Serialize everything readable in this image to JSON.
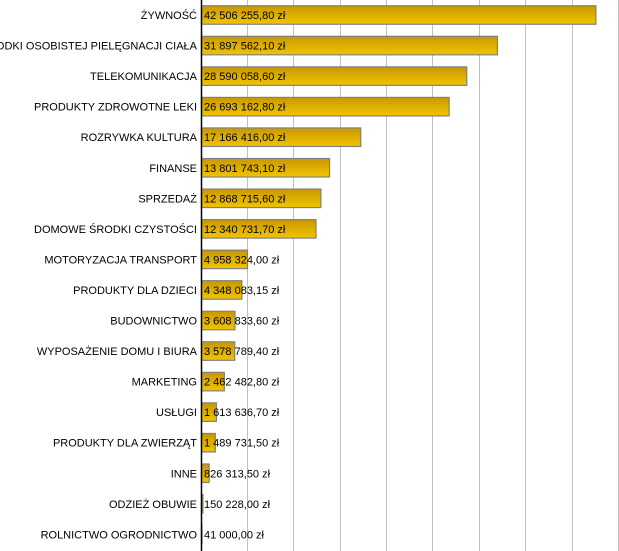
{
  "chart_data": {
    "type": "bar",
    "orientation": "horizontal",
    "title": "",
    "xlabel": "",
    "ylabel": "",
    "xlim": [
      0,
      45000000
    ],
    "grid_step": 5000000,
    "grid": true,
    "bar_color_top": "#c89800",
    "bar_color_bottom": "#f2c400",
    "bar_border": "#808080",
    "grid_color": "#c0c0c0",
    "categories": [
      "ŻYWNOŚĆ",
      "ŚRODKI OSOBISTEJ PIELĘGNACJI CIAŁA",
      "TELEKOMUNIKACJA",
      "PRODUKTY ZDROWOTNE LEKI",
      "ROZRYWKA KULTURA",
      "FINANSE",
      "SPRZEDAŻ",
      "DOMOWE ŚRODKI CZYSTOŚCI",
      "MOTORYZACJA TRANSPORT",
      "PRODUKTY DLA DZIECI",
      "BUDOWNICTWO",
      "WYPOSAŻENIE DOMU I BIURA",
      "MARKETING",
      "USŁUGI",
      "PRODUKTY DLA ZWIERZĄT",
      "INNE",
      "ODZIEŻ OBUWIE",
      "ROLNICTWO OGRODNICTWO"
    ],
    "values": [
      42506255.8,
      31897562.1,
      28590058.6,
      26693162.8,
      17166416.0,
      13801743.1,
      12868715.6,
      12340731.7,
      4958324.0,
      4348083.15,
      3608833.6,
      3578789.4,
      2462482.8,
      1613636.7,
      1489731.5,
      826313.5,
      150228.0,
      41000.0
    ],
    "value_labels": [
      "42 506 255,80 zł",
      "31 897 562,10 zł",
      "28 590 058,60 zł",
      "26 693 162,80 zł",
      "17 166 416,00 zł",
      "13 801 743,10 zł",
      "12 868 715,60 zł",
      "12 340 731,70 zł",
      "4 958 324,00 zł",
      "4 348 083,15 zł",
      "3 608 833,60 zł",
      "3 578 789,40 zł",
      "2 462 482,80 zł",
      "1 613 636,70 zł",
      "1 489 731,50 zł",
      "826 313,50 zł",
      "150 228,00 zł",
      "41 000,00 zł"
    ]
  }
}
